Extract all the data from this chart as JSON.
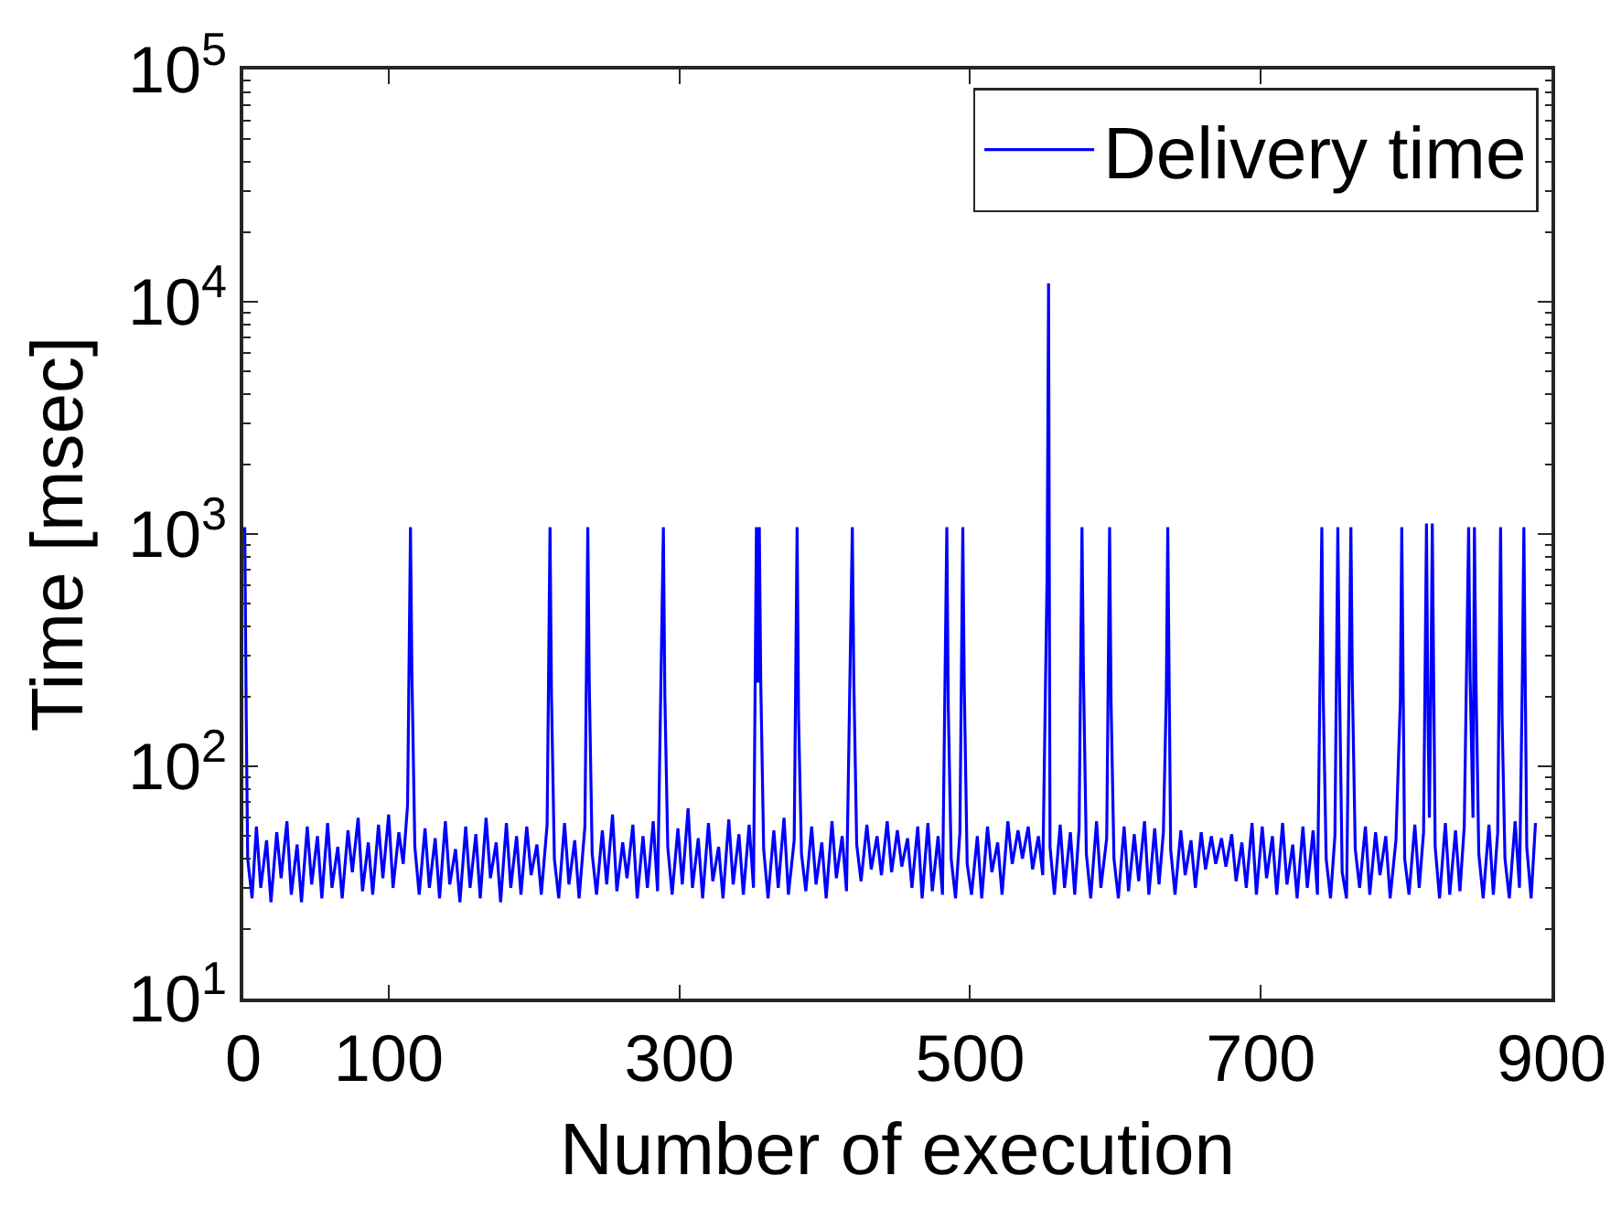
{
  "chart_data": {
    "type": "line",
    "xlabel": "Number of execution",
    "ylabel": "Time [msec]",
    "log": "y",
    "grid": false,
    "legend": "top right",
    "line_style": "solid",
    "xlim": [
      0,
      900
    ],
    "xticks": [
      0,
      100,
      300,
      500,
      700,
      900
    ],
    "ylim": [
      10,
      100000
    ],
    "yticks": [
      {
        "value": 10,
        "label": "10$^{1}$"
      },
      {
        "value": 20,
        "label": null
      },
      {
        "value": 30,
        "label": null
      },
      {
        "value": 40,
        "label": null
      },
      {
        "value": 50,
        "label": null
      },
      {
        "value": 60,
        "label": null
      },
      {
        "value": 70,
        "label": null
      },
      {
        "value": 80,
        "label": null
      },
      {
        "value": 90,
        "label": null
      },
      {
        "value": 100,
        "label": "10$^{2}$"
      },
      {
        "value": 200,
        "label": null
      },
      {
        "value": 300,
        "label": null
      },
      {
        "value": 400,
        "label": null
      },
      {
        "value": 500,
        "label": null
      },
      {
        "value": 600,
        "label": null
      },
      {
        "value": 700,
        "label": null
      },
      {
        "value": 800,
        "label": null
      },
      {
        "value": 900,
        "label": null
      },
      {
        "value": 1000,
        "label": "10$^{3}$"
      },
      {
        "value": 2000,
        "label": null
      },
      {
        "value": 3000,
        "label": null
      },
      {
        "value": 4000,
        "label": null
      },
      {
        "value": 5000,
        "label": null
      },
      {
        "value": 6000,
        "label": null
      },
      {
        "value": 7000,
        "label": null
      },
      {
        "value": 8000,
        "label": null
      },
      {
        "value": 9000,
        "label": null
      },
      {
        "value": 10000,
        "label": "10$^{4}$"
      },
      {
        "value": 20000,
        "label": null
      },
      {
        "value": 30000,
        "label": null
      },
      {
        "value": 40000,
        "label": null
      },
      {
        "value": 50000,
        "label": null
      },
      {
        "value": 60000,
        "label": null
      },
      {
        "value": 70000,
        "label": null
      },
      {
        "value": 80000,
        "label": null
      },
      {
        "value": 90000,
        "label": null
      },
      {
        "value": 100000,
        "label": "10$^{5}$"
      }
    ],
    "x": [
      1,
      2,
      3,
      6,
      9,
      12,
      16,
      19,
      23,
      26,
      30,
      33,
      37,
      40,
      44,
      47,
      51,
      54,
      58,
      61,
      65,
      68,
      72,
      75,
      79,
      82,
      86,
      89,
      93,
      96,
      100,
      103,
      107,
      110,
      113,
      115,
      116,
      118,
      121,
      125,
      128,
      132,
      135,
      139,
      142,
      146,
      149,
      153,
      156,
      160,
      163,
      167,
      170,
      174,
      177,
      181,
      184,
      188,
      191,
      195,
      198,
      202,
      205,
      209,
      211,
      212,
      214,
      217,
      221,
      224,
      228,
      231,
      235,
      237,
      238,
      240,
      243,
      247,
      250,
      254,
      257,
      261,
      264,
      268,
      271,
      275,
      278,
      282,
      285,
      289,
      290,
      292,
      295,
      299,
      302,
      306,
      309,
      313,
      316,
      320,
      323,
      327,
      330,
      334,
      337,
      341,
      344,
      348,
      351,
      353,
      354,
      355,
      356,
      358,
      361,
      365,
      368,
      372,
      375,
      379,
      381,
      382,
      384,
      387,
      391,
      394,
      398,
      401,
      405,
      408,
      412,
      415,
      419,
      420,
      422,
      425,
      429,
      432,
      436,
      439,
      443,
      446,
      450,
      453,
      457,
      460,
      464,
      467,
      471,
      474,
      478,
      481,
      484,
      485,
      487,
      490,
      493,
      495,
      496,
      498,
      501,
      505,
      508,
      512,
      515,
      519,
      522,
      526,
      529,
      533,
      536,
      540,
      543,
      547,
      550,
      553,
      554,
      555,
      558,
      562,
      565,
      569,
      572,
      575,
      577,
      578,
      580,
      583,
      587,
      590,
      594,
      596,
      597,
      599,
      602,
      606,
      609,
      613,
      616,
      620,
      623,
      627,
      630,
      633,
      635,
      636,
      638,
      641,
      645,
      648,
      652,
      655,
      659,
      662,
      666,
      669,
      673,
      676,
      680,
      683,
      687,
      690,
      694,
      697,
      701,
      704,
      708,
      711,
      715,
      718,
      722,
      725,
      729,
      732,
      736,
      739,
      742,
      743,
      745,
      748,
      751,
      753,
      754,
      756,
      759,
      762,
      763,
      765,
      768,
      772,
      775,
      779,
      782,
      786,
      789,
      793,
      796,
      797,
      799,
      802,
      806,
      809,
      812,
      814,
      815,
      816,
      817,
      818,
      820,
      823,
      827,
      830,
      834,
      837,
      840,
      843,
      844,
      846,
      847,
      848,
      850,
      853,
      857,
      860,
      863,
      865,
      866,
      868,
      871,
      875,
      878,
      880,
      881,
      883,
      886,
      889
    ],
    "series": [
      {
        "name": "Delivery time",
        "color": "#0000ff",
        "values": [
          1070,
          164,
          40,
          27,
          55,
          30,
          48,
          26,
          52,
          33,
          58,
          28,
          46,
          26,
          55,
          31,
          50,
          27,
          57,
          30,
          45,
          27,
          53,
          35,
          60,
          29,
          47,
          28,
          56,
          33,
          62,
          30,
          52,
          38,
          68,
          1070,
          246,
          45,
          28,
          54,
          30,
          49,
          27,
          58,
          31,
          44,
          26,
          55,
          30,
          51,
          27,
          60,
          33,
          47,
          26,
          57,
          30,
          50,
          28,
          55,
          34,
          46,
          28,
          56,
          1070,
          203,
          40,
          27,
          57,
          31,
          48,
          27,
          55,
          1070,
          229,
          42,
          28,
          53,
          31,
          62,
          29,
          47,
          33,
          56,
          27,
          50,
          30,
          58,
          29,
          1070,
          203,
          45,
          28,
          54,
          31,
          66,
          30,
          49,
          27,
          57,
          32,
          45,
          27,
          59,
          31,
          51,
          28,
          56,
          30,
          1070,
          229,
          1070,
          229,
          44,
          27,
          53,
          30,
          60,
          28,
          48,
          1070,
          164,
          42,
          29,
          55,
          31,
          47,
          27,
          58,
          33,
          50,
          29,
          1070,
          235,
          46,
          32,
          56,
          36,
          50,
          34,
          58,
          35,
          53,
          37,
          49,
          30,
          55,
          27,
          57,
          29,
          50,
          28,
          1070,
          179,
          40,
          27,
          52,
          1070,
          222,
          38,
          28,
          50,
          27,
          55,
          35,
          47,
          28,
          58,
          38,
          53,
          40,
          55,
          36,
          50,
          34,
          680,
          12000,
          45,
          28,
          56,
          30,
          52,
          28,
          54,
          1070,
          251,
          42,
          27,
          58,
          30,
          49,
          1070,
          191,
          40,
          27,
          55,
          29,
          51,
          32,
          58,
          28,
          54,
          31,
          52,
          203,
          1070,
          44,
          28,
          53,
          34,
          48,
          30,
          52,
          36,
          50,
          38,
          49,
          37,
          51,
          32,
          47,
          30,
          57,
          28,
          55,
          33,
          50,
          28,
          57,
          31,
          46,
          27,
          55,
          30,
          53,
          28,
          1070,
          197,
          40,
          27,
          50,
          1070,
          266,
          35,
          27,
          1070,
          229,
          44,
          30,
          55,
          28,
          52,
          34,
          50,
          27,
          48,
          191,
          1070,
          40,
          28,
          56,
          30,
          52,
          1110,
          169,
          60,
          203,
          1110,
          45,
          27,
          57,
          28,
          53,
          29,
          55,
          1070,
          246,
          60,
          1070,
          246,
          42,
          27,
          56,
          28,
          52,
          1070,
          164,
          40,
          27,
          58,
          30,
          251,
          1070,
          45,
          27,
          57
        ]
      }
    ]
  }
}
